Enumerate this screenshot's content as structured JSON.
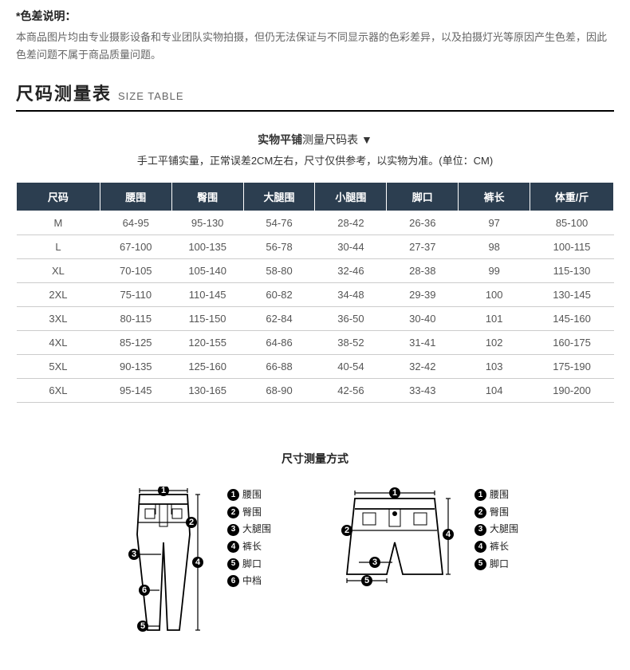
{
  "note": {
    "title": "*色差说明：",
    "body": "本商品图片均由专业摄影设备和专业团队实物拍摄，但仍无法保证与不同显示器的色彩差异，以及拍摄灯光等原因产生色差，因此色差问题不属于商品质量问题。"
  },
  "section": {
    "cn": "尺码测量表",
    "en": "SIZE TABLE"
  },
  "subtitle": {
    "bold": "实物平铺",
    "rest": "测量尺码表 ▼"
  },
  "subnote": "手工平铺实量，正常误差2CM左右，尺寸仅供参考，以实物为准。(单位：CM)",
  "table": {
    "columns": [
      "尺码",
      "腰围",
      "臀围",
      "大腿围",
      "小腿围",
      "脚口",
      "裤长",
      "体重/斤"
    ],
    "col_widths": [
      "14%",
      "12%",
      "12%",
      "12%",
      "12%",
      "12%",
      "12%",
      "14%"
    ],
    "rows": [
      [
        "M",
        "64-95",
        "95-130",
        "54-76",
        "28-42",
        "26-36",
        "97",
        "85-100"
      ],
      [
        "L",
        "67-100",
        "100-135",
        "56-78",
        "30-44",
        "27-37",
        "98",
        "100-115"
      ],
      [
        "XL",
        "70-105",
        "105-140",
        "58-80",
        "32-46",
        "28-38",
        "99",
        "115-130"
      ],
      [
        "2XL",
        "75-110",
        "110-145",
        "60-82",
        "34-48",
        "29-39",
        "100",
        "130-145"
      ],
      [
        "3XL",
        "80-115",
        "115-150",
        "62-84",
        "36-50",
        "30-40",
        "101",
        "145-160"
      ],
      [
        "4XL",
        "85-125",
        "120-155",
        "64-86",
        "38-52",
        "31-41",
        "102",
        "160-175"
      ],
      [
        "5XL",
        "90-135",
        "125-160",
        "66-88",
        "40-54",
        "32-42",
        "103",
        "175-190"
      ],
      [
        "6XL",
        "95-145",
        "130-165",
        "68-90",
        "42-56",
        "33-43",
        "104",
        "190-200"
      ]
    ],
    "header_bg": "#2c3e50",
    "header_fg": "#ffffff",
    "border_color": "#cccccc"
  },
  "measure_title": "尺寸测量方式",
  "legends": {
    "pants": [
      {
        "n": "1",
        "label": "腰围"
      },
      {
        "n": "2",
        "label": "臀围"
      },
      {
        "n": "3",
        "label": "大腿围"
      },
      {
        "n": "4",
        "label": "裤长"
      },
      {
        "n": "5",
        "label": "脚口"
      },
      {
        "n": "6",
        "label": "中档"
      }
    ],
    "shorts": [
      {
        "n": "1",
        "label": "腰围"
      },
      {
        "n": "2",
        "label": "臀围"
      },
      {
        "n": "3",
        "label": "大腿围"
      },
      {
        "n": "4",
        "label": "裤长"
      },
      {
        "n": "5",
        "label": "脚口"
      }
    ]
  }
}
